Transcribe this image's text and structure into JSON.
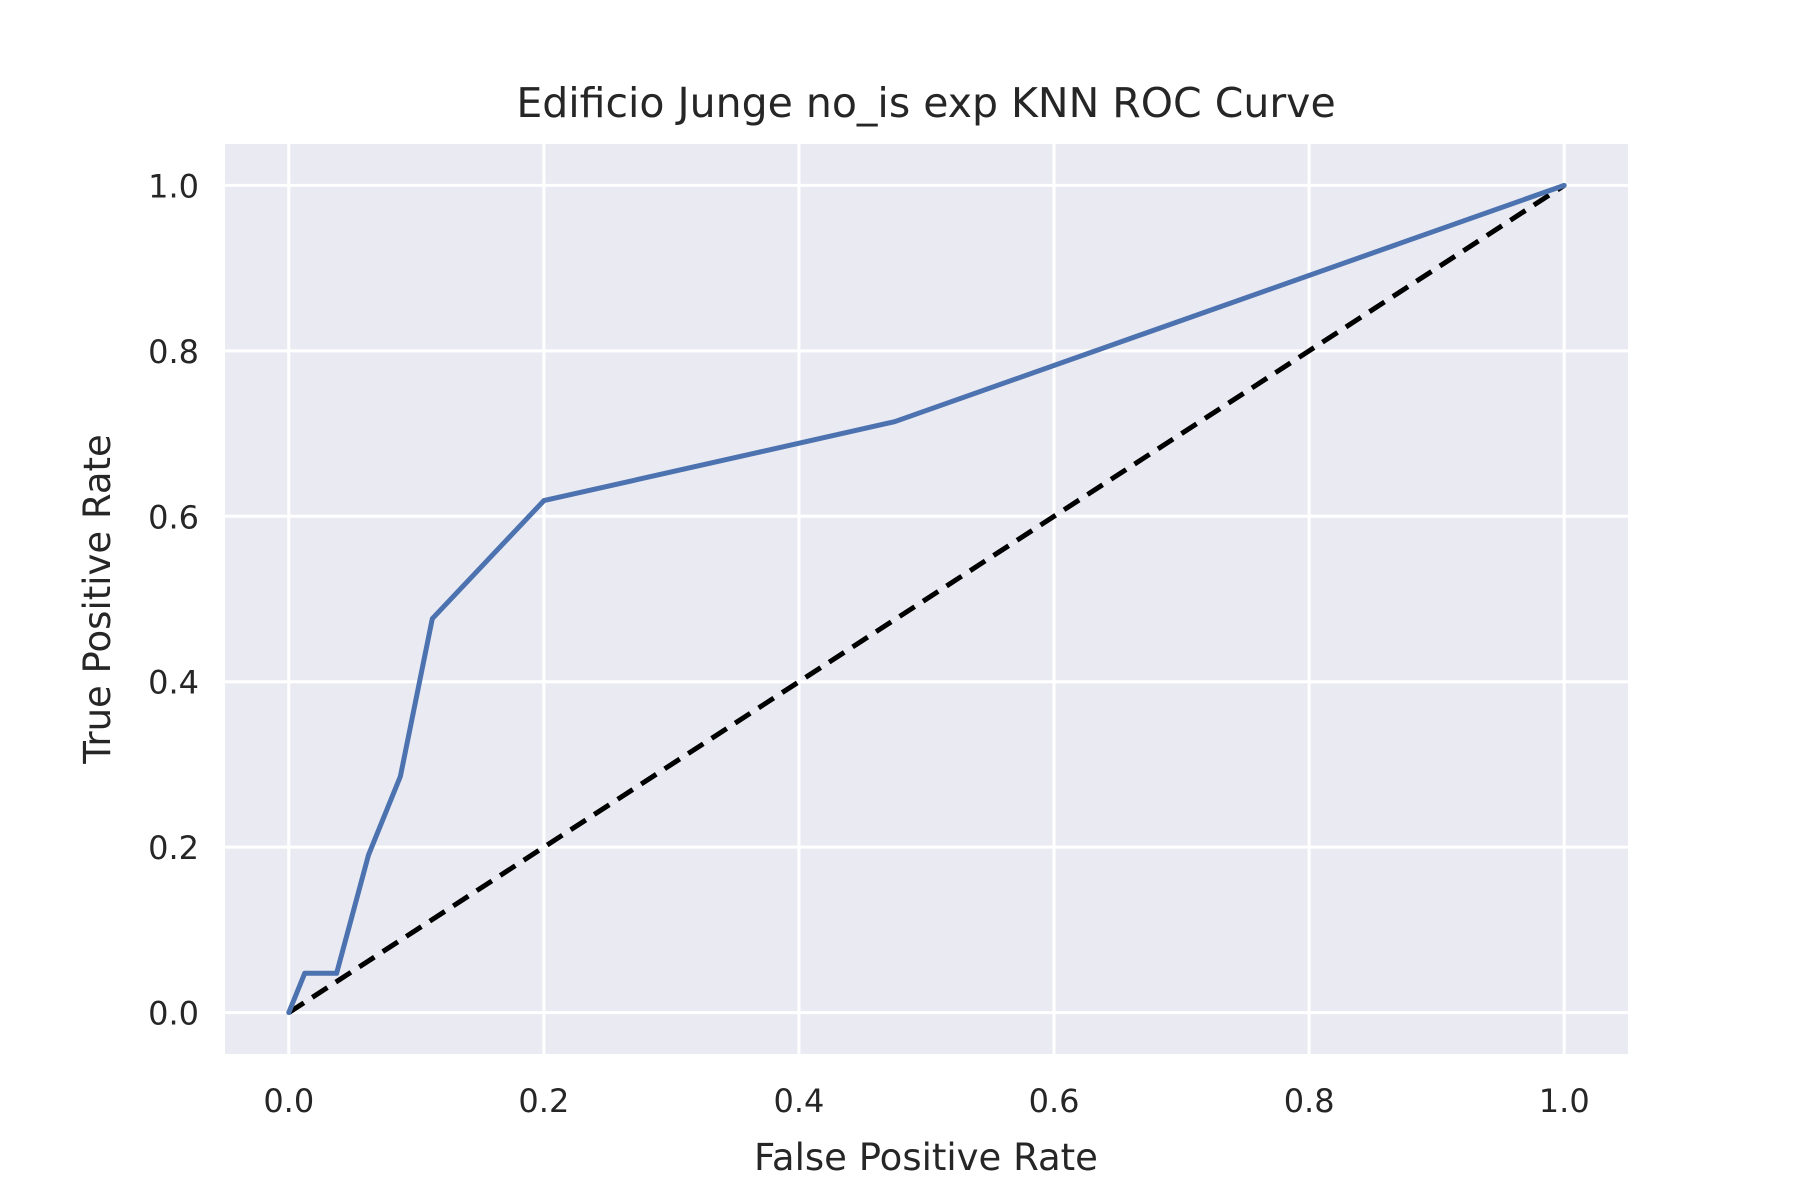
{
  "chart_data": {
    "type": "line",
    "title": "Edificio Junge no_is exp KNN ROC Curve",
    "xlabel": "False Positive Rate",
    "ylabel": "True Positive Rate",
    "xlim": [
      -0.05,
      1.05
    ],
    "ylim": [
      -0.05,
      1.05
    ],
    "grid": true,
    "background_color": "#eaeaf2",
    "grid_color": "#ffffff",
    "xticks": [
      0.0,
      0.2,
      0.4,
      0.6,
      0.8,
      1.0
    ],
    "xtick_labels": [
      "0.0",
      "0.2",
      "0.4",
      "0.6",
      "0.8",
      "1.0"
    ],
    "yticks": [
      0.0,
      0.2,
      0.4,
      0.6,
      0.8,
      1.0
    ],
    "ytick_labels": [
      "0.0",
      "0.2",
      "0.4",
      "0.6",
      "0.8",
      "1.0"
    ],
    "series": [
      {
        "color": "#4c72b0",
        "style": "solid",
        "x": [
          0.0,
          0.0125,
          0.0375,
          0.0625,
          0.0875,
          0.1125,
          0.2,
          0.475,
          1.0
        ],
        "y": [
          0.0,
          0.0476,
          0.0476,
          0.1905,
          0.2857,
          0.4762,
          0.619,
          0.7143,
          1.0
        ]
      },
      {
        "color": "#000000",
        "style": "dashed",
        "x": [
          0.0,
          1.0
        ],
        "y": [
          0.0,
          1.0
        ]
      }
    ]
  }
}
